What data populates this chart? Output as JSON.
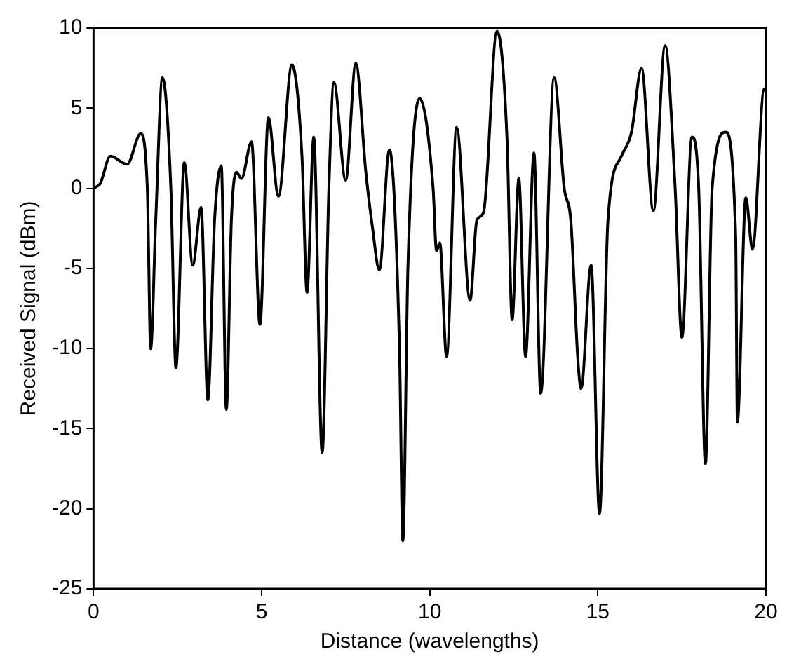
{
  "chart_data": {
    "type": "line",
    "xlabel": "Distance (wavelengths)",
    "ylabel": "Received Signal (dBm)",
    "xlim": [
      0,
      20
    ],
    "ylim": [
      -25,
      10
    ],
    "xticks": [
      0,
      5,
      10,
      15,
      20
    ],
    "yticks": [
      -25,
      -20,
      -15,
      -10,
      -5,
      0,
      5,
      10
    ],
    "grid": false,
    "legend": false,
    "marker": "none",
    "line_style": "solid",
    "series": [
      {
        "color": "#000000",
        "x": [
          0,
          0.2,
          0.5,
          1.0,
          1.4,
          1.6,
          1.7,
          1.85,
          2.05,
          2.3,
          2.45,
          2.7,
          2.95,
          3.2,
          3.4,
          3.6,
          3.8,
          3.95,
          4.1,
          4.25,
          4.4,
          4.7,
          4.95,
          5.2,
          5.5,
          5.9,
          6.2,
          6.35,
          6.55,
          6.8,
          7.0,
          7.15,
          7.5,
          7.8,
          8.1,
          8.3,
          8.5,
          8.8,
          9.1,
          9.2,
          9.35,
          9.7,
          10.1,
          10.2,
          10.3,
          10.5,
          10.8,
          11.2,
          11.4,
          11.6,
          12.0,
          12.3,
          12.45,
          12.65,
          12.85,
          13.1,
          13.3,
          13.7,
          14.0,
          14.2,
          14.4,
          14.5,
          14.8,
          15.05,
          15.3,
          15.7,
          16.0,
          16.3,
          16.65,
          17.0,
          17.3,
          17.5,
          17.8,
          18.0,
          18.2,
          18.4,
          18.8,
          19.1,
          19.15,
          19.4,
          19.6,
          19.95,
          20
        ],
        "values": [
          0,
          0.3,
          2.0,
          1.5,
          3.4,
          0,
          -10,
          -2,
          6.9,
          0,
          -11.2,
          1.6,
          -4.8,
          -1.2,
          -13.2,
          -2,
          1.4,
          -13.8,
          -2,
          1.0,
          0.6,
          2.9,
          -8.5,
          4.4,
          -0.5,
          7.7,
          2,
          -6.5,
          3.2,
          -16.5,
          0,
          6.6,
          0.5,
          7.8,
          1,
          -2.5,
          -5.1,
          2.4,
          -10,
          -22,
          -5,
          5.6,
          0,
          -3.9,
          -3.4,
          -10.5,
          3.8,
          -7,
          -2,
          -1.5,
          9.8,
          3,
          -8.2,
          0.6,
          -10.5,
          2.2,
          -12.8,
          6.9,
          0,
          -2.1,
          -10.5,
          -12.5,
          -4.8,
          -20.3,
          -2,
          2,
          3.5,
          7.5,
          -1.4,
          8.9,
          0,
          -9.3,
          3.2,
          0,
          -17.2,
          0,
          3.5,
          -3,
          -14.6,
          -0.6,
          -3.8,
          6.2,
          6
        ]
      }
    ]
  }
}
